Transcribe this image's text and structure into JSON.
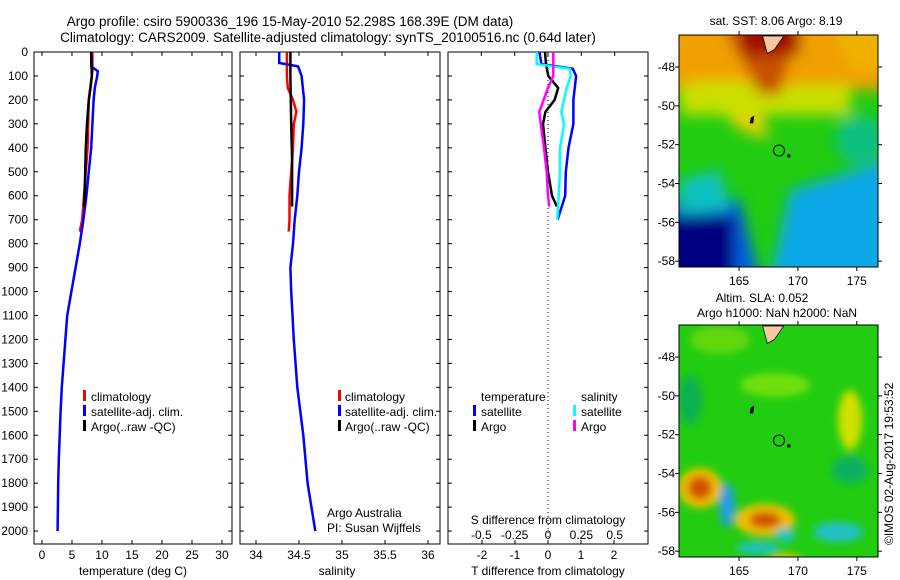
{
  "title": {
    "line1": "Argo profile: csiro 5900336_196 15-May-2010 52.298S 168.39E (DM data)",
    "line2": "Climatology: CARS2009. Satellite-adjusted climatology: synTS_20100516.nc (0.64d later)"
  },
  "chart_data": [
    {
      "type": "line",
      "name": "temperature-profile",
      "xlabel": "temperature (deg C)",
      "ylabel": "",
      "xlim": [
        -1.33,
        31.67
      ],
      "ylim": [
        2054,
        0
      ],
      "xticks": [
        "0",
        "5",
        "10",
        "15",
        "20",
        "25",
        "30"
      ],
      "xtick_values": [
        0,
        5,
        10,
        15,
        20,
        25,
        30
      ],
      "yticks": [
        "0",
        "100",
        "200",
        "300",
        "400",
        "500",
        "600",
        "700",
        "800",
        "900",
        "1000",
        "1100",
        "1200",
        "1300",
        "1400",
        "1500",
        "1600",
        "1700",
        "1800",
        "1900",
        "2000"
      ],
      "ytick_values": [
        0,
        100,
        200,
        300,
        400,
        500,
        600,
        700,
        800,
        900,
        1000,
        1100,
        1200,
        1300,
        1400,
        1500,
        1600,
        1700,
        1800,
        1900,
        2000
      ],
      "legend": [
        "climatology",
        "satellite-adj. clim.",
        "Argo(..raw -QC)"
      ],
      "series": [
        {
          "name": "climatology",
          "color": "#ff0000",
          "depth": [
            0,
            80,
            150,
            200,
            300,
            400,
            500,
            600,
            700,
            750
          ],
          "values": [
            8.4,
            8.4,
            8.1,
            7.8,
            7.7,
            7.6,
            7.3,
            7.0,
            6.7,
            6.3
          ]
        },
        {
          "name": "satellite-adj. clim.",
          "color": "#0000ff",
          "depth": [
            0,
            60,
            80,
            100,
            150,
            200,
            300,
            400,
            500,
            600,
            700,
            800,
            900,
            1000,
            1100,
            1200,
            1300,
            1400,
            1500,
            1600,
            1700,
            1800,
            1900,
            2000
          ],
          "values": [
            8.2,
            8.2,
            9.3,
            9.2,
            8.8,
            8.6,
            8.4,
            8.2,
            7.8,
            7.4,
            6.9,
            6.3,
            5.6,
            4.9,
            4.2,
            3.9,
            3.6,
            3.3,
            3.1,
            2.95,
            2.8,
            2.7,
            2.65,
            2.6
          ]
        },
        {
          "name": "Argo(..raw -QC)",
          "color": "#000000",
          "depth": [
            0,
            100,
            200,
            300,
            400,
            500,
            600,
            645
          ],
          "values": [
            8.2,
            8.3,
            7.8,
            7.5,
            7.3,
            7.2,
            7.1,
            7.0
          ]
        }
      ]
    },
    {
      "type": "line",
      "name": "salinity-profile",
      "xlabel": "salinity",
      "xlim": [
        33.814,
        36.14
      ],
      "ylim": [
        2054,
        0
      ],
      "xticks": [
        "34",
        "34.5",
        "35",
        "35.5",
        "36"
      ],
      "xtick_values": [
        34,
        34.5,
        35,
        35.5,
        36
      ],
      "legend": [
        "climatology",
        "satellite-adj. clim.",
        "Argo(..raw -QC)"
      ],
      "annotation": [
        "Argo Australia",
        "PI: Susan Wijffels"
      ],
      "series": [
        {
          "name": "climatology",
          "color": "#ff0000",
          "depth": [
            0,
            100,
            150,
            200,
            250,
            300,
            400,
            500,
            600,
            700,
            750
          ],
          "values": [
            34.36,
            34.36,
            34.37,
            34.43,
            34.47,
            34.44,
            34.43,
            34.41,
            34.39,
            34.39,
            34.38
          ]
        },
        {
          "name": "satellite-adj. clim.",
          "color": "#0000ff",
          "depth": [
            0,
            46,
            60,
            100,
            200,
            300,
            400,
            500,
            600,
            700,
            800,
            900,
            1000,
            1200,
            1400,
            1600,
            1800,
            2000
          ],
          "values": [
            34.27,
            34.27,
            34.49,
            34.53,
            34.56,
            34.55,
            34.53,
            34.5,
            34.48,
            34.45,
            34.43,
            34.4,
            34.41,
            34.44,
            34.48,
            34.55,
            34.6,
            34.69
          ]
        },
        {
          "name": "Argo(..raw -QC)",
          "color": "#000000",
          "depth": [
            0,
            100,
            300,
            450,
            645
          ],
          "values": [
            34.4,
            34.4,
            34.41,
            34.42,
            34.42
          ]
        }
      ]
    },
    {
      "type": "line",
      "name": "difference-profile",
      "xlabel": "T difference from climatology",
      "x2label": "S difference from climatology",
      "xlim": [
        -3.03,
        3.03
      ],
      "x2lim": [
        -0.75,
        0.75
      ],
      "ylim": [
        2054,
        0
      ],
      "xticks": [
        "-2",
        "-1",
        "0",
        "1",
        "2"
      ],
      "xtick_values": [
        -2,
        -1,
        0,
        1,
        2
      ],
      "x2ticks": [
        "-0.5",
        "-0.25",
        "0",
        "0.25",
        "0.5"
      ],
      "x2tick_values": [
        -0.5,
        -0.25,
        0,
        0.25,
        0.5
      ],
      "legend_headers": [
        "temperature",
        "salinity"
      ],
      "legend": [
        "satellite",
        "Argo",
        "satellite",
        "Argo"
      ],
      "series": [
        {
          "name": "T satellite",
          "axis": "T",
          "color": "#0000ff",
          "depth": [
            0,
            50,
            70,
            100,
            200,
            300,
            400,
            500,
            600,
            700
          ],
          "values": [
            -0.26,
            -0.2,
            0.75,
            0.85,
            0.77,
            0.77,
            0.62,
            0.54,
            0.52,
            0.29
          ]
        },
        {
          "name": "T Argo",
          "axis": "T",
          "color": "#000000",
          "depth": [
            0,
            50,
            100,
            150,
            200,
            250,
            300,
            400,
            500,
            600,
            645
          ],
          "values": [
            -0.09,
            -0.06,
            0.01,
            0.31,
            0.2,
            -0.08,
            -0.15,
            -0.08,
            0.0,
            0.12,
            0.27
          ]
        },
        {
          "name": "S satellite",
          "axis": "S",
          "color": "#00ffff",
          "depth": [
            0,
            50,
            70,
            100,
            150,
            250,
            300,
            400,
            500,
            600,
            700
          ],
          "values": [
            -0.085,
            -0.085,
            0.165,
            0.17,
            0.14,
            0.1,
            0.12,
            0.09,
            0.09,
            0.08,
            0.07
          ]
        },
        {
          "name": "S Argo",
          "axis": "S",
          "color": "#ff00ff",
          "depth": [
            0,
            100,
            150,
            250,
            300,
            400,
            500,
            600,
            645
          ],
          "values": [
            0.04,
            0.04,
            0.0,
            -0.065,
            -0.055,
            -0.03,
            -0.01,
            0.0,
            0.01
          ]
        }
      ]
    },
    {
      "type": "heatmap",
      "name": "sst-map",
      "title": "sat. SST: 8.06 Argo: 8.19",
      "xlim": [
        159.9,
        176.8
      ],
      "ylim": [
        -58.3,
        -46.35
      ],
      "xticks": [
        "165",
        "170",
        "175"
      ],
      "xtick_values": [
        165,
        170,
        175
      ],
      "yticks": [
        "-48",
        "-50",
        "-52",
        "-54",
        "-56",
        "-58"
      ],
      "ytick_values": [
        -48,
        -50,
        -52,
        -54,
        -56,
        -58
      ],
      "float_position": {
        "lon": 168.39,
        "lat": -52.298
      }
    },
    {
      "type": "heatmap",
      "name": "sla-map",
      "title": "Altim. SLA: 0.052",
      "subtitle": "Argo h1000: NaN h2000: NaN",
      "xlim": [
        159.9,
        176.8
      ],
      "ylim": [
        -58.3,
        -46.35
      ],
      "xticks": [
        "165",
        "170",
        "175"
      ],
      "xtick_values": [
        165,
        170,
        175
      ],
      "yticks": [
        "-48",
        "-50",
        "-52",
        "-54",
        "-56",
        "-58"
      ],
      "ytick_values": [
        -48,
        -50,
        -52,
        -54,
        -56,
        -58
      ],
      "float_position": {
        "lon": 168.39,
        "lat": -52.298
      }
    }
  ],
  "credit": "©IMOS 02-Aug-2017 19:53:52"
}
